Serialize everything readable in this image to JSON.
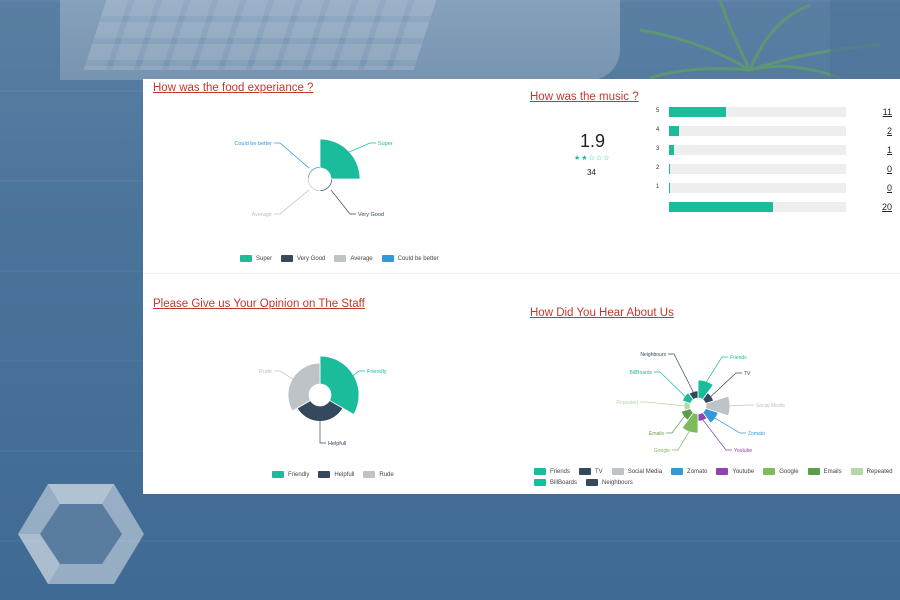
{
  "colors": {
    "friends_teal": "#1abc9c",
    "very_good_navy": "#34495e",
    "average_gray": "#bdc3c7",
    "could_be_better_blue": "#3498db",
    "youtube_purple": "#8e44ad",
    "google_green": "#7dbb5d",
    "emails_green": "#5d9c4c",
    "repeated_lightgreen": "#b5d8a8",
    "title_red": "#c0392b"
  },
  "food": {
    "title": "How was the food experiance ?",
    "chart_data": {
      "type": "pie",
      "style": "polar-area",
      "categories": [
        "Super",
        "Very Good",
        "Average",
        "Could be better"
      ],
      "values": [
        1,
        0.05,
        0.05,
        0.05
      ],
      "colors": [
        "#1abc9c",
        "#34495e",
        "#bdc3c7",
        "#3498db"
      ],
      "legend": [
        "Super",
        "Very Good",
        "Average",
        "Could be better"
      ]
    }
  },
  "music": {
    "title": "How was the music ?",
    "average": "1.9",
    "stars_filled": 2,
    "stars_total": 5,
    "review_count": "34",
    "chart_data": {
      "type": "bar",
      "orientation": "horizontal",
      "categories": [
        "5",
        "4",
        "3",
        "2",
        "1",
        ""
      ],
      "values": [
        11,
        2,
        1,
        0,
        0,
        20
      ],
      "labels": [
        "11",
        "2",
        "1",
        "0",
        "0",
        "20"
      ],
      "max": 34
    }
  },
  "staff": {
    "title": "Please Give us Your Opinion on The Staff",
    "chart_data": {
      "type": "pie",
      "style": "polar-area",
      "categories": [
        "Friendly",
        "Helpfull",
        "Rude"
      ],
      "values": [
        1,
        0.55,
        0.75
      ],
      "colors": [
        "#1abc9c",
        "#34495e",
        "#bdc3c7"
      ],
      "legend": [
        "Friendly",
        "Helpfull",
        "Rude"
      ]
    }
  },
  "hear": {
    "title": "How Did You Hear About Us",
    "chart_data": {
      "type": "pie",
      "style": "polar-area",
      "categories": [
        "Friends",
        "TV",
        "Social Media",
        "Zomato",
        "Youtube",
        "Google",
        "Emails",
        "Repeated",
        "BillBoards",
        "Neighbours"
      ],
      "values": [
        0.75,
        0.35,
        1,
        0.55,
        0.3,
        0.8,
        0.4,
        0.25,
        0.35,
        0.3
      ],
      "colors": [
        "#1abc9c",
        "#34495e",
        "#bdc3c7",
        "#3498db",
        "#8e44ad",
        "#7dbb5d",
        "#5d9c4c",
        "#b5d8a8",
        "#1abc9c",
        "#34495e"
      ],
      "legend": [
        "Friends",
        "TV",
        "Social Media",
        "Zomato",
        "Youtube",
        "Google",
        "Emails",
        "Repeated",
        "BillBoards",
        "Neighbours"
      ]
    }
  }
}
